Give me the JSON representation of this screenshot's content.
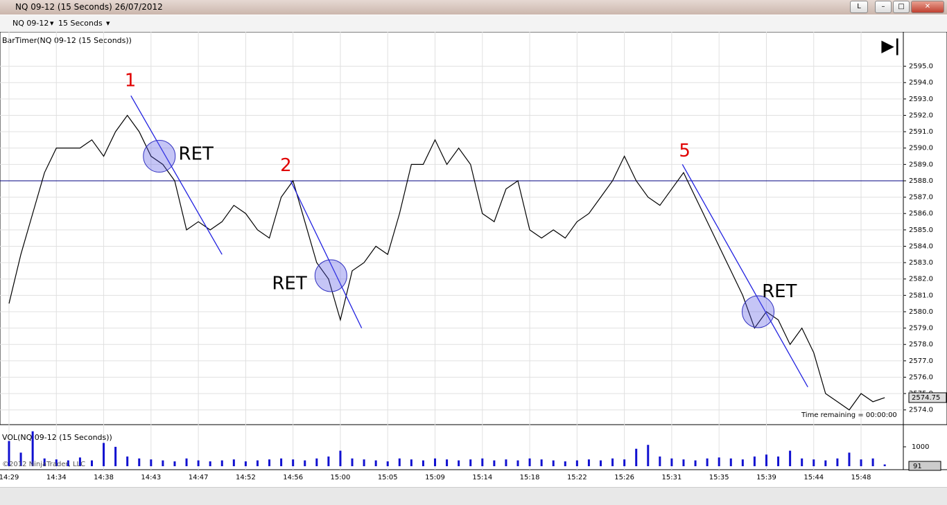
{
  "window": {
    "title": "NQ 09-12 (15 Seconds)  26/07/2012",
    "layout_button": "L"
  },
  "toolbar": {
    "instrument": "NQ 09-12",
    "interval": "15 Seconds"
  },
  "chart_data": [
    {
      "type": "line",
      "indicator": "BarTimer(NQ 09-12 (15 Seconds))",
      "color": "#000000",
      "categories": [
        "14:29",
        null,
        null,
        null,
        "14:34",
        null,
        null,
        null,
        "14:38",
        null,
        null,
        null,
        "14:43",
        null,
        null,
        null,
        "14:47",
        null,
        null,
        null,
        "14:52",
        null,
        null,
        null,
        "14:56",
        null,
        null,
        null,
        "15:00",
        null,
        null,
        null,
        "15:05",
        null,
        null,
        null,
        "15:09",
        null,
        null,
        null,
        "15:14",
        null,
        null,
        null,
        "15:18",
        null,
        null,
        null,
        "15:22",
        null,
        null,
        null,
        "15:26",
        null,
        null,
        null,
        "15:31",
        null,
        null,
        null,
        "15:35",
        null,
        null,
        null,
        "15:39",
        null,
        null,
        null,
        "15:44",
        null,
        null,
        null,
        "15:48",
        null,
        null
      ],
      "values": [
        2580.5,
        2583.5,
        2586,
        2588.5,
        2590,
        2590,
        2590,
        2590.5,
        2589.5,
        2591,
        2592,
        2591,
        2589.5,
        2589,
        2588,
        2585,
        2585.5,
        2585,
        2585.5,
        2586.5,
        2586,
        2585,
        2584.5,
        2587,
        2588,
        2585.5,
        2583,
        2582,
        2579.5,
        2582.5,
        2583,
        2584,
        2583.5,
        2586,
        2589,
        2589,
        2590.5,
        2589,
        2590,
        2589,
        2586,
        2585.5,
        2587.5,
        2588,
        2585,
        2584.5,
        2585,
        2584.5,
        2585.5,
        2586,
        2587,
        2588,
        2589.5,
        2588,
        2587,
        2586.5,
        2587.5,
        2588.5,
        2587,
        2585.5,
        2584,
        2582.5,
        2581,
        2579,
        2580,
        2579.5,
        2578,
        2579,
        2577.5,
        2575,
        2574.5,
        2574,
        2575,
        2574.5,
        2574.75
      ],
      "ylim": [
        2573.1,
        2597.1
      ],
      "yticks": [
        {
          "value": 2574,
          "label": "2574.0"
        },
        {
          "value": 2575,
          "label": "2575.0"
        },
        {
          "value": 2576,
          "label": "2576.0"
        },
        {
          "value": 2577,
          "label": "2577.0"
        },
        {
          "value": 2578,
          "label": "2578.0"
        },
        {
          "value": 2579,
          "label": "2579.0"
        },
        {
          "value": 2580,
          "label": "2580.0"
        },
        {
          "value": 2581,
          "label": "2581.0"
        },
        {
          "value": 2582,
          "label": "2582.0"
        },
        {
          "value": 2583,
          "label": "2583.0"
        },
        {
          "value": 2584,
          "label": "2584.0"
        },
        {
          "value": 2585,
          "label": "2585.0"
        },
        {
          "value": 2586,
          "label": "2586.0"
        },
        {
          "value": 2587,
          "label": "2587.0"
        },
        {
          "value": 2588,
          "label": "2588.0"
        },
        {
          "value": 2589,
          "label": "2589.0"
        },
        {
          "value": 2590,
          "label": "2590.0"
        },
        {
          "value": 2591,
          "label": "2591.0"
        },
        {
          "value": 2592,
          "label": "2592.0"
        },
        {
          "value": 2593,
          "label": "2593.0"
        },
        {
          "value": 2594,
          "label": "2594.0"
        },
        {
          "value": 2595,
          "label": "2595.0"
        }
      ],
      "grid": true,
      "hline": 2588,
      "trendlines": [
        [
          [
            10.3,
            2593.2
          ],
          [
            18.0,
            2583.5
          ]
        ],
        [
          [
            23.8,
            2588.0
          ],
          [
            29.8,
            2579.0
          ]
        ],
        [
          [
            56.9,
            2589.0
          ],
          [
            67.5,
            2575.4
          ]
        ]
      ],
      "circles": [
        [
          12.7,
          2589.5
        ],
        [
          27.2,
          2582.2
        ],
        [
          63.3,
          2580.0
        ]
      ],
      "annotations": [
        {
          "text": "1",
          "x": 10.25,
          "y": 2594.1,
          "color": "#e00000"
        },
        {
          "text": "2",
          "x": 23.4,
          "y": 2588.9,
          "color": "#e00000"
        },
        {
          "text": "5",
          "x": 57.1,
          "y": 2589.8,
          "color": "#e00000"
        },
        {
          "text": "RET",
          "x": 15.8,
          "y": 2589.6,
          "color": "#000000"
        },
        {
          "text": "RET",
          "x": 23.7,
          "y": 2581.7,
          "color": "#000000"
        },
        {
          "text": "RET",
          "x": 65.1,
          "y": 2581.2,
          "color": "#000000"
        }
      ],
      "timer": "Time remaining = 00:00:00"
    },
    {
      "type": "bar",
      "indicator": "VOL(NQ 09-12 (15 Seconds))",
      "color": "#1010d0",
      "values": [
        1300,
        700,
        1800,
        400,
        350,
        300,
        450,
        300,
        1200,
        1000,
        500,
        400,
        350,
        300,
        250,
        400,
        300,
        250,
        300,
        350,
        250,
        300,
        350,
        400,
        350,
        300,
        400,
        500,
        800,
        400,
        350,
        300,
        250,
        400,
        350,
        300,
        400,
        350,
        300,
        350,
        400,
        300,
        350,
        300,
        400,
        350,
        300,
        250,
        300,
        350,
        300,
        400,
        350,
        900,
        1100,
        500,
        400,
        350,
        300,
        400,
        450,
        400,
        350,
        500,
        600,
        500,
        800,
        400,
        350,
        300,
        400,
        700,
        350,
        400,
        91
      ],
      "ylim": [
        0,
        2000
      ],
      "yticks": [
        1000
      ],
      "copyright": "©2012 NinjaTrader, LLC"
    }
  ]
}
